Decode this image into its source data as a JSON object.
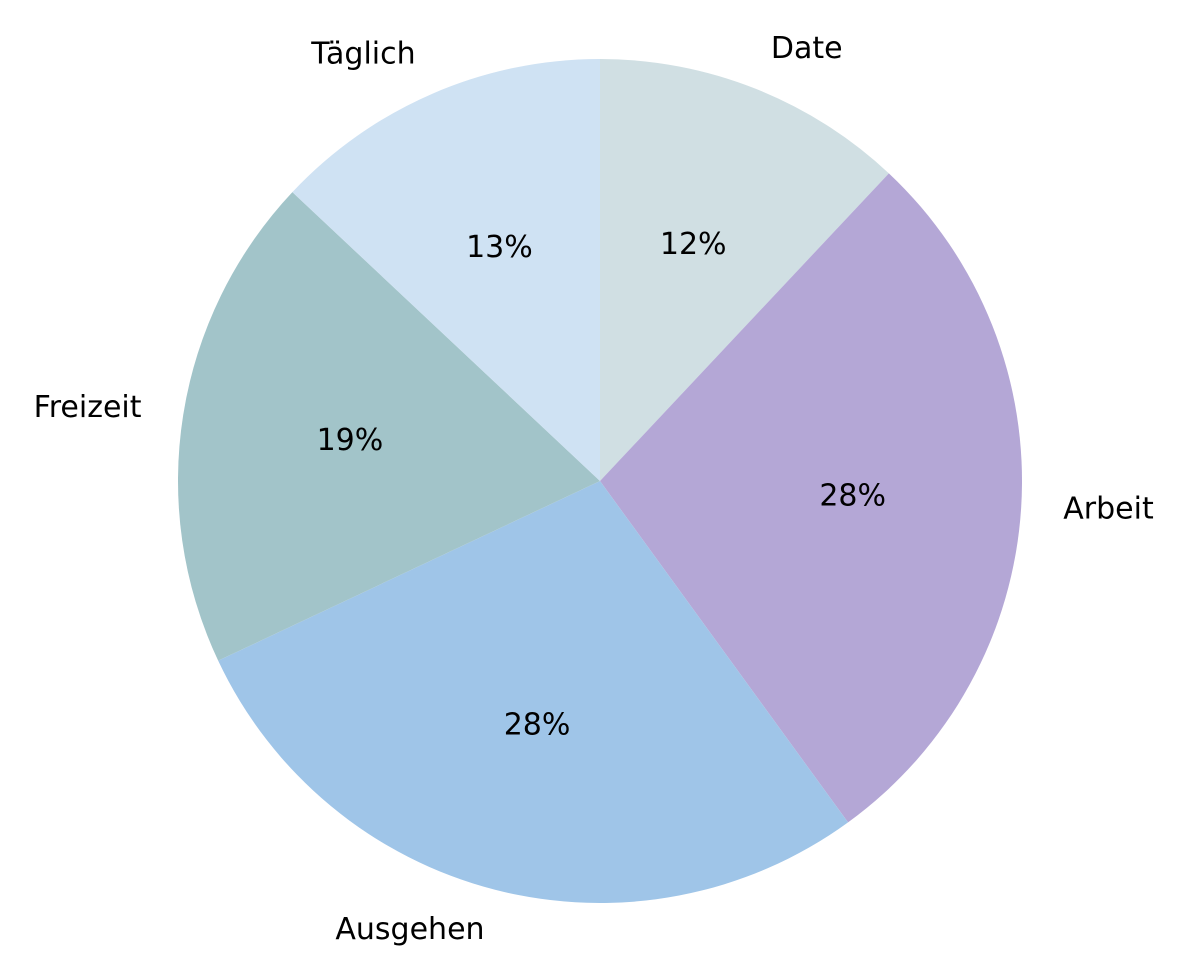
{
  "chart_data": {
    "type": "pie",
    "categories": [
      "Date",
      "Arbeit",
      "Ausgehen",
      "Freizeit",
      "Täglich"
    ],
    "values": [
      12,
      28,
      28,
      19,
      13
    ],
    "value_labels": [
      "12%",
      "28%",
      "28%",
      "19%",
      "13%"
    ],
    "colors": [
      "#d0dfe3",
      "#b4a7d6",
      "#9fc5e8",
      "#a2c4c9",
      "#cfe2f3"
    ]
  }
}
